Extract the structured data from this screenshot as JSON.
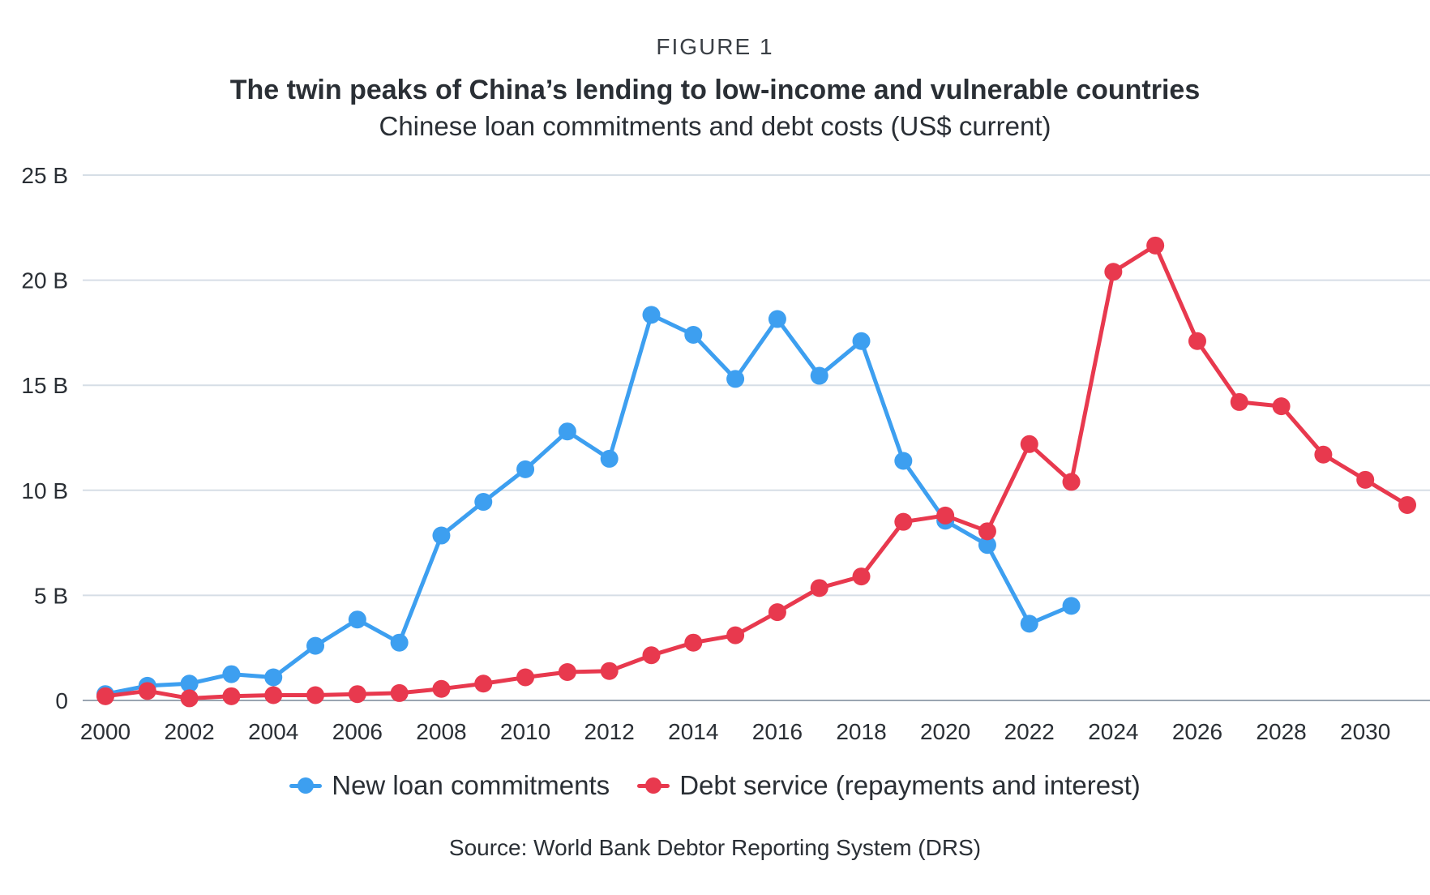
{
  "header": {
    "figure_label": "FIGURE 1",
    "title": "The twin peaks of China’s lending to low-income and vulnerable countries",
    "subtitle": "Chinese loan commitments and debt costs (US$ current)"
  },
  "source": "Source: World Bank Debtor Reporting System (DRS)",
  "legend": {
    "items": [
      {
        "label": "New loan commitments",
        "color": "#3d9ff0"
      },
      {
        "label": "Debt service (repayments and interest)",
        "color": "#e8394e"
      }
    ]
  },
  "chart_data": {
    "type": "line",
    "title": "The twin peaks of China’s lending to low-income and vulnerable countries",
    "subtitle": "Chinese loan commitments and debt costs (US$ current)",
    "xlabel": "",
    "ylabel": "",
    "xlim": [
      2000,
      2031
    ],
    "ylim": [
      0,
      25
    ],
    "x_ticks": [
      "2000",
      "2002",
      "2004",
      "2006",
      "2008",
      "2010",
      "2012",
      "2014",
      "2016",
      "2018",
      "2020",
      "2022",
      "2024",
      "2026",
      "2028",
      "2030"
    ],
    "y_ticks": [
      "0",
      "5 B",
      "10 B",
      "15 B",
      "20 B",
      "25 B"
    ],
    "y_tick_values": [
      0,
      5,
      10,
      15,
      20,
      25
    ],
    "grid": "horizontal",
    "legend_position": "bottom",
    "series": [
      {
        "name": "New loan commitments",
        "color": "#3d9ff0",
        "x": [
          2000,
          2001,
          2002,
          2003,
          2004,
          2005,
          2006,
          2007,
          2008,
          2009,
          2010,
          2011,
          2012,
          2013,
          2014,
          2015,
          2016,
          2017,
          2018,
          2019,
          2020,
          2021,
          2022,
          2023
        ],
        "values": [
          0.3,
          0.7,
          0.8,
          1.25,
          1.1,
          2.6,
          3.85,
          2.75,
          7.85,
          9.45,
          11.0,
          12.8,
          11.5,
          18.35,
          17.4,
          15.3,
          18.15,
          15.45,
          17.1,
          11.4,
          8.55,
          7.4,
          3.65,
          4.5
        ]
      },
      {
        "name": "Debt service (repayments and interest)",
        "color": "#e8394e",
        "x": [
          2000,
          2001,
          2002,
          2003,
          2004,
          2005,
          2006,
          2007,
          2008,
          2009,
          2010,
          2011,
          2012,
          2013,
          2014,
          2015,
          2016,
          2017,
          2018,
          2019,
          2020,
          2021,
          2022,
          2023,
          2024,
          2025,
          2026,
          2027,
          2028,
          2029,
          2030,
          2031
        ],
        "values": [
          0.2,
          0.45,
          0.1,
          0.2,
          0.25,
          0.25,
          0.3,
          0.35,
          0.55,
          0.8,
          1.1,
          1.35,
          1.4,
          2.15,
          2.75,
          3.1,
          4.2,
          5.35,
          5.9,
          8.5,
          8.8,
          8.05,
          12.2,
          10.4,
          20.4,
          21.65,
          17.1,
          14.2,
          14.0,
          11.7,
          10.5,
          9.3
        ]
      }
    ]
  }
}
